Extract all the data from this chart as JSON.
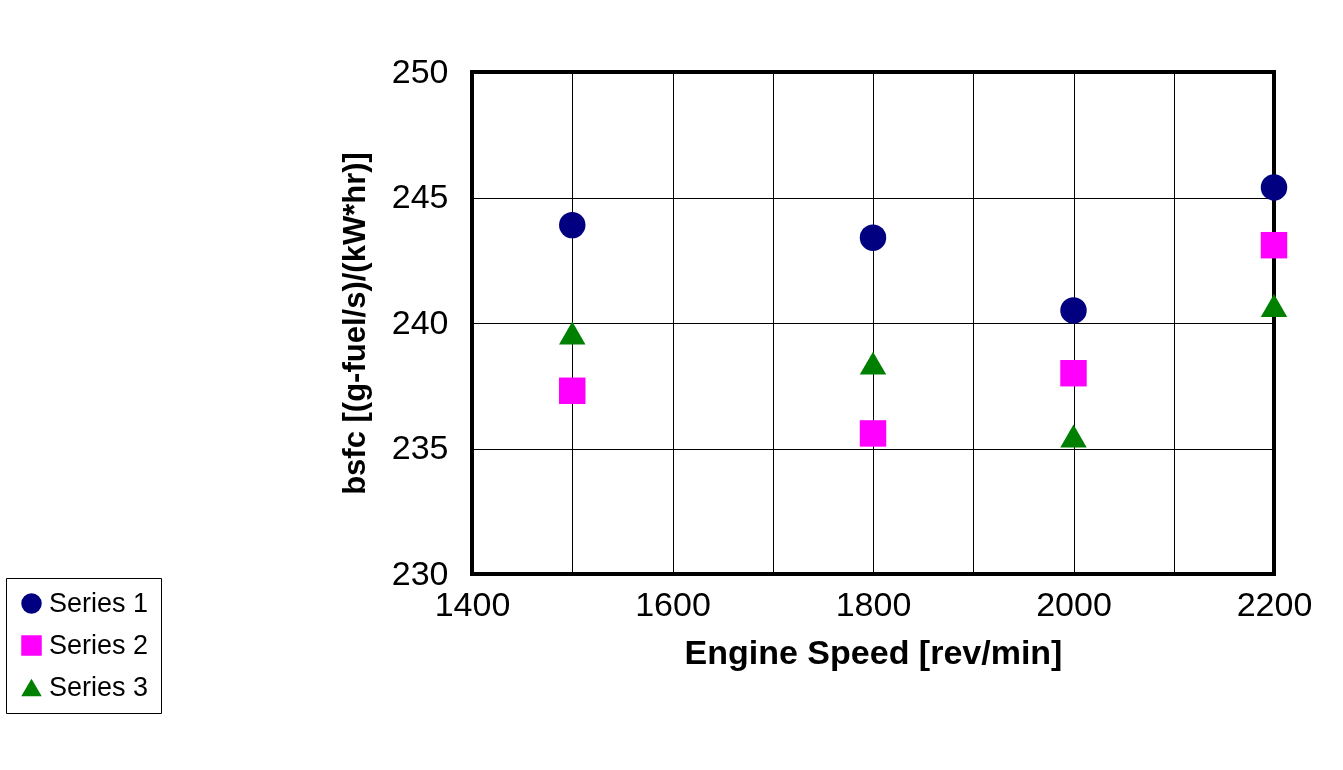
{
  "chart_data": {
    "type": "scatter",
    "xlabel": "Engine Speed [rev/min]",
    "ylabel": "bsfc [(g-fuel/s)/(kW*hr)]",
    "x": [
      1500,
      1800,
      2000,
      2200
    ],
    "series": [
      {
        "name": "Series 1",
        "color": "#000080",
        "marker": "circle",
        "values": [
          243.9,
          243.4,
          240.5,
          245.4
        ]
      },
      {
        "name": "Series 2",
        "color": "#ff00ff",
        "marker": "square",
        "values": [
          237.3,
          235.6,
          238.0,
          243.1
        ]
      },
      {
        "name": "Series 3",
        "color": "#008000",
        "marker": "triangle",
        "values": [
          239.6,
          238.4,
          235.5,
          240.7
        ]
      }
    ],
    "xlim": [
      1400,
      2200
    ],
    "xticks": [
      1400,
      {
        "value": 1500,
        "label": null
      },
      1600,
      {
        "value": 1700,
        "label": null
      },
      1800,
      {
        "value": 1900,
        "label": null
      },
      2000,
      {
        "value": 2100,
        "label": null
      },
      2200
    ],
    "ylim": [
      230,
      250
    ],
    "yticks": [
      230,
      235,
      240,
      245,
      250
    ],
    "grid": true,
    "legend": "bottom left"
  }
}
